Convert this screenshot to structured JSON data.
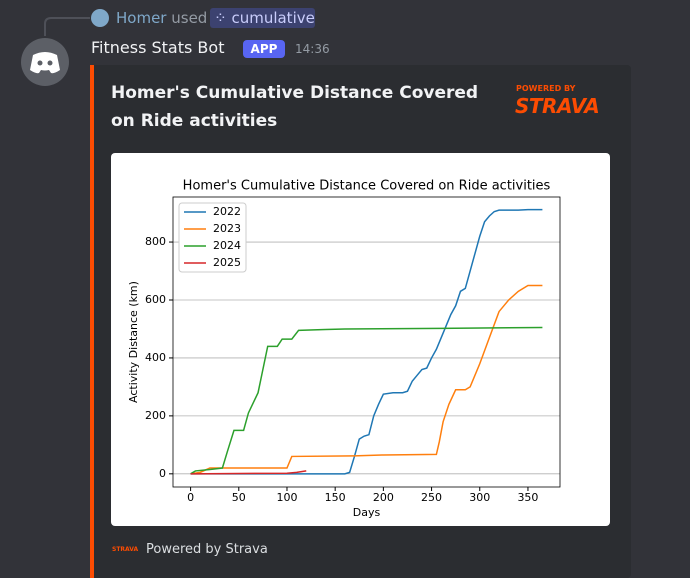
{
  "reply": {
    "user": "Homer",
    "action": "used",
    "command": "cumulative"
  },
  "message": {
    "author": "Fitness Stats Bot",
    "badge": "APP",
    "time": "14:36"
  },
  "embed": {
    "title": "Homer's Cumulative Distance Covered on Ride activities",
    "provider_label": "POWERED BY",
    "provider_logo": "STRAVA",
    "footer": "Powered by Strava"
  },
  "chart_data": {
    "type": "line",
    "title": "Homer's Cumulative Distance Covered on Ride activities",
    "x_label": "Days",
    "y_label": "Activity Distance (km)",
    "xlim": [
      -18.25,
      383.25
    ],
    "ylim": [
      -45.5,
      955.5
    ],
    "xticks": [
      0,
      50,
      100,
      150,
      200,
      250,
      300,
      350
    ],
    "yticks": [
      0,
      200,
      400,
      600,
      800
    ],
    "grid": "y",
    "legend": "upper left",
    "series": [
      {
        "name": "2022",
        "color": "#1f77b4",
        "x": [
          0,
          160,
          165,
          170,
          175,
          180,
          185,
          190,
          195,
          200,
          210,
          220,
          225,
          230,
          235,
          240,
          245,
          250,
          255,
          260,
          265,
          270,
          275,
          280,
          285,
          290,
          295,
          300,
          305,
          310,
          315,
          320,
          330,
          340,
          350,
          365
        ],
        "values": [
          0,
          0,
          5,
          60,
          120,
          130,
          135,
          200,
          240,
          275,
          280,
          280,
          285,
          320,
          340,
          360,
          365,
          400,
          430,
          470,
          510,
          550,
          580,
          630,
          640,
          700,
          760,
          820,
          870,
          890,
          905,
          910,
          910,
          910,
          912,
          912
        ]
      },
      {
        "name": "2023",
        "color": "#ff7f0e",
        "x": [
          0,
          10,
          20,
          100,
          105,
          170,
          200,
          255,
          258,
          262,
          268,
          275,
          285,
          290,
          300,
          310,
          320,
          330,
          340,
          350,
          365
        ],
        "values": [
          0,
          5,
          20,
          20,
          60,
          62,
          65,
          67,
          110,
          180,
          240,
          290,
          290,
          300,
          380,
          470,
          560,
          600,
          630,
          650,
          650
        ]
      },
      {
        "name": "2024",
        "color": "#2ca02c",
        "x": [
          0,
          5,
          20,
          33,
          38,
          45,
          55,
          60,
          70,
          75,
          80,
          90,
          95,
          105,
          112,
          140,
          160,
          260,
          365
        ],
        "values": [
          0,
          10,
          15,
          20,
          75,
          150,
          150,
          210,
          280,
          360,
          440,
          440,
          465,
          465,
          495,
          498,
          500,
          502,
          505
        ]
      },
      {
        "name": "2025",
        "color": "#d62728",
        "x": [
          0,
          100,
          110,
          120
        ],
        "values": [
          0,
          2,
          5,
          10
        ]
      }
    ]
  }
}
